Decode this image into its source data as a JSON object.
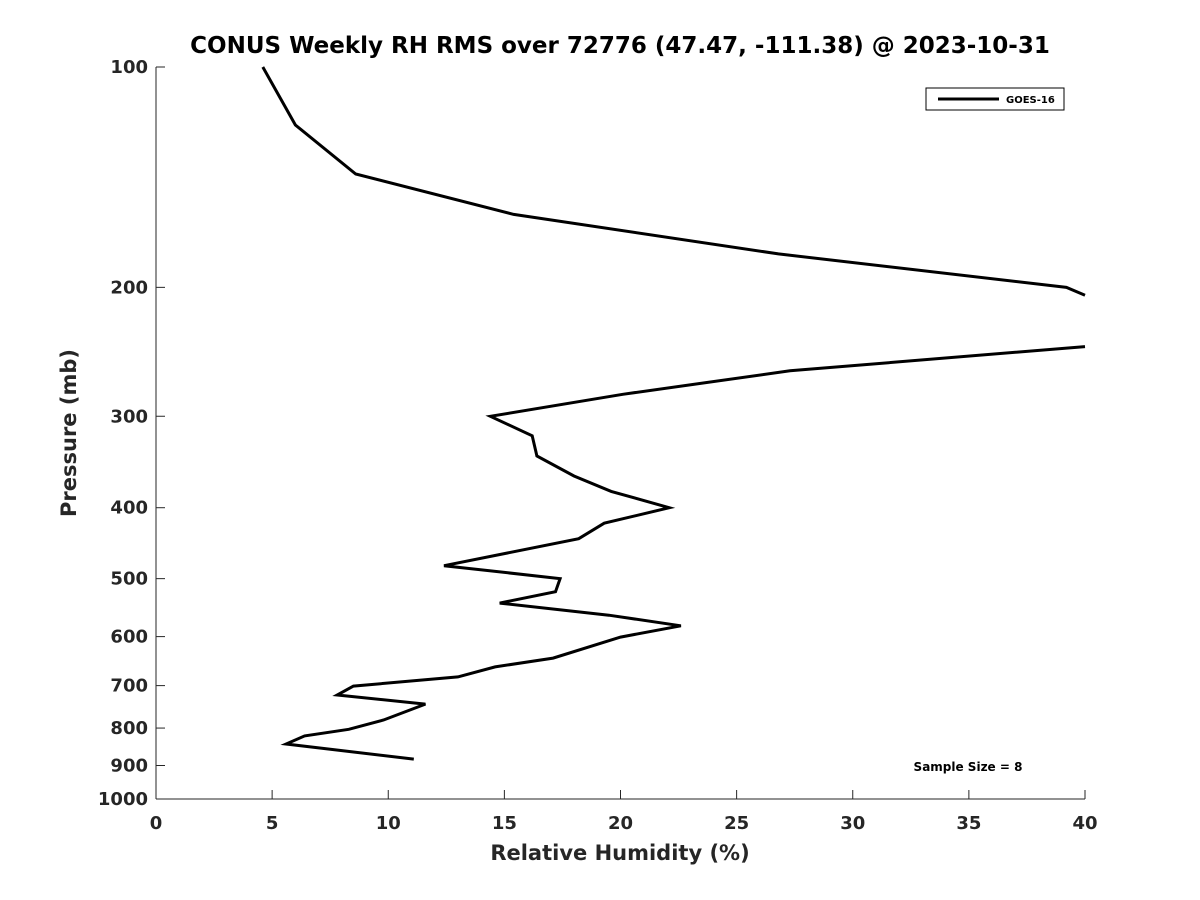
{
  "chart_data": {
    "type": "line",
    "title": "CONUS Weekly RH RMS over 72776 (47.47, -111.38) @ 2023-10-31",
    "xlabel": "Relative Humidity (%)",
    "ylabel": "Pressure (mb)",
    "xlim": [
      0,
      40
    ],
    "ylim": [
      100,
      1000
    ],
    "yscale": "log",
    "yreversed": true,
    "grid": false,
    "xticks": [
      "0",
      "5",
      "10",
      "15",
      "20",
      "25",
      "30",
      "35",
      "40"
    ],
    "yticks": [
      {
        "value": 100,
        "label": "100"
      },
      {
        "value": 200,
        "label": "200"
      },
      {
        "value": 300,
        "label": "300"
      },
      {
        "value": 400,
        "label": "400"
      },
      {
        "value": 500,
        "label": "500"
      },
      {
        "value": 600,
        "label": "600"
      },
      {
        "value": 700,
        "label": "700"
      },
      {
        "value": 800,
        "label": "800"
      },
      {
        "value": 900,
        "label": "900"
      },
      {
        "value": 1000,
        "label": "1000"
      }
    ],
    "legend": {
      "placement": "top-right",
      "entries": [
        "GOES-16"
      ]
    },
    "annotation": "Sample Size = 8",
    "series": [
      {
        "name": "GOES-16",
        "color": "#000000",
        "points": [
          [
            4.6,
            100
          ],
          [
            6.0,
            120
          ],
          [
            8.6,
            140
          ],
          [
            15.4,
            159
          ],
          [
            26.8,
            180
          ],
          [
            39.2,
            200
          ],
          [
            40.0,
            205
          ],
          null,
          [
            40.0,
            241
          ],
          [
            27.3,
            260
          ],
          [
            20.1,
            280
          ],
          [
            14.4,
            300
          ],
          [
            16.2,
            319
          ],
          [
            16.4,
            340
          ],
          [
            18.0,
            362
          ],
          [
            19.6,
            380
          ],
          [
            22.1,
            400
          ],
          [
            19.3,
            420
          ],
          [
            18.2,
            441
          ],
          [
            12.4,
            480
          ],
          [
            17.4,
            500
          ],
          [
            17.2,
            521
          ],
          [
            14.8,
            540
          ],
          [
            19.5,
            561
          ],
          [
            22.6,
            580
          ],
          [
            20.0,
            601
          ],
          [
            17.1,
            642
          ],
          [
            14.6,
            660
          ],
          [
            13.0,
            681
          ],
          [
            8.5,
            701
          ],
          [
            7.8,
            721
          ],
          [
            11.6,
            742
          ],
          [
            9.8,
            780
          ],
          [
            8.3,
            803
          ],
          [
            6.4,
            820
          ],
          [
            5.6,
            841
          ],
          [
            11.1,
            882
          ]
        ]
      }
    ]
  }
}
